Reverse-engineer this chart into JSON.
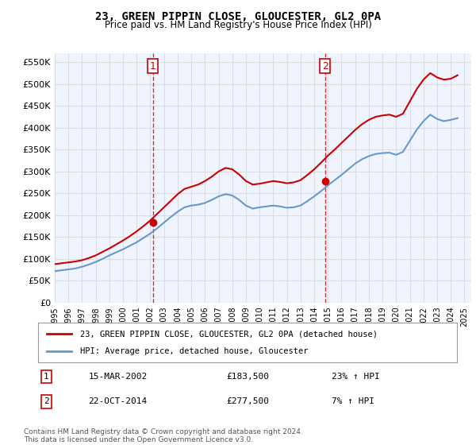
{
  "title": "23, GREEN PIPPIN CLOSE, GLOUCESTER, GL2 0PA",
  "subtitle": "Price paid vs. HM Land Registry's House Price Index (HPI)",
  "footer1": "Contains HM Land Registry data © Crown copyright and database right 2024.",
  "footer2": "This data is licensed under the Open Government Licence v3.0.",
  "legend_line1": "23, GREEN PIPPIN CLOSE, GLOUCESTER, GL2 0PA (detached house)",
  "legend_line2": "HPI: Average price, detached house, Gloucester",
  "transaction1_label": "1",
  "transaction1_date": "15-MAR-2002",
  "transaction1_price": "£183,500",
  "transaction1_hpi": "23% ↑ HPI",
  "transaction2_label": "2",
  "transaction2_date": "22-OCT-2014",
  "transaction2_price": "£277,500",
  "transaction2_hpi": "7% ↑ HPI",
  "vline1_x": 2002.2,
  "vline2_x": 2014.8,
  "dot1_x": 2002.2,
  "dot1_y": 183500,
  "dot2_x": 2014.8,
  "dot2_y": 277500,
  "ylim_min": 0,
  "ylim_max": 570000,
  "xlim_min": 1995.0,
  "xlim_max": 2025.5,
  "red_color": "#cc0000",
  "blue_color": "#6699cc",
  "vline_color": "#cc0000",
  "grid_color": "#dddddd",
  "bg_color": "#ffffff",
  "plot_bg_color": "#f0f4ff",
  "yticks": [
    0,
    50000,
    100000,
    150000,
    200000,
    250000,
    300000,
    350000,
    400000,
    450000,
    500000,
    550000
  ],
  "xtick_years": [
    1995,
    1996,
    1997,
    1998,
    1999,
    2000,
    2001,
    2002,
    2003,
    2004,
    2005,
    2006,
    2007,
    2008,
    2009,
    2010,
    2011,
    2012,
    2013,
    2014,
    2015,
    2016,
    2017,
    2018,
    2019,
    2020,
    2021,
    2022,
    2023,
    2024,
    2025
  ],
  "hpi_x": [
    1995.0,
    1995.5,
    1996.0,
    1996.5,
    1997.0,
    1997.5,
    1998.0,
    1998.5,
    1999.0,
    1999.5,
    2000.0,
    2000.5,
    2001.0,
    2001.5,
    2002.0,
    2002.5,
    2003.0,
    2003.5,
    2004.0,
    2004.5,
    2005.0,
    2005.5,
    2006.0,
    2006.5,
    2007.0,
    2007.5,
    2008.0,
    2008.5,
    2009.0,
    2009.5,
    2010.0,
    2010.5,
    2011.0,
    2011.5,
    2012.0,
    2012.5,
    2013.0,
    2013.5,
    2014.0,
    2014.5,
    2015.0,
    2015.5,
    2016.0,
    2016.5,
    2017.0,
    2017.5,
    2018.0,
    2018.5,
    2019.0,
    2019.5,
    2020.0,
    2020.5,
    2021.0,
    2021.5,
    2022.0,
    2022.5,
    2023.0,
    2023.5,
    2024.0,
    2024.5
  ],
  "hpi_y": [
    72000,
    74000,
    76000,
    78000,
    82000,
    87000,
    93000,
    100000,
    108000,
    115000,
    122000,
    130000,
    138000,
    148000,
    158000,
    170000,
    183000,
    196000,
    208000,
    218000,
    222000,
    224000,
    228000,
    235000,
    243000,
    248000,
    245000,
    235000,
    222000,
    215000,
    218000,
    220000,
    222000,
    220000,
    217000,
    218000,
    222000,
    232000,
    243000,
    255000,
    268000,
    280000,
    292000,
    305000,
    318000,
    328000,
    335000,
    340000,
    342000,
    343000,
    338000,
    345000,
    370000,
    395000,
    415000,
    430000,
    420000,
    415000,
    418000,
    422000
  ],
  "red_x": [
    1995.0,
    1995.5,
    1996.0,
    1996.5,
    1997.0,
    1997.5,
    1998.0,
    1998.5,
    1999.0,
    1999.5,
    2000.0,
    2000.5,
    2001.0,
    2001.5,
    2002.0,
    2002.5,
    2003.0,
    2003.5,
    2004.0,
    2004.5,
    2005.0,
    2005.5,
    2006.0,
    2006.5,
    2007.0,
    2007.5,
    2008.0,
    2008.5,
    2009.0,
    2009.5,
    2010.0,
    2010.5,
    2011.0,
    2011.5,
    2012.0,
    2012.5,
    2013.0,
    2013.5,
    2014.0,
    2014.5,
    2015.0,
    2015.5,
    2016.0,
    2016.5,
    2017.0,
    2017.5,
    2018.0,
    2018.5,
    2019.0,
    2019.5,
    2020.0,
    2020.5,
    2021.0,
    2021.5,
    2022.0,
    2022.5,
    2023.0,
    2023.5,
    2024.0,
    2024.5
  ],
  "red_y": [
    88000,
    90000,
    92000,
    94000,
    97000,
    102000,
    108000,
    116000,
    124000,
    133000,
    142000,
    152000,
    163000,
    175000,
    188000,
    203000,
    218000,
    233000,
    248000,
    260000,
    265000,
    270000,
    278000,
    288000,
    300000,
    308000,
    305000,
    293000,
    278000,
    270000,
    272000,
    275000,
    278000,
    276000,
    273000,
    275000,
    280000,
    292000,
    305000,
    320000,
    336000,
    350000,
    365000,
    380000,
    395000,
    408000,
    418000,
    425000,
    428000,
    430000,
    425000,
    432000,
    460000,
    488000,
    510000,
    525000,
    515000,
    510000,
    512000,
    520000
  ]
}
